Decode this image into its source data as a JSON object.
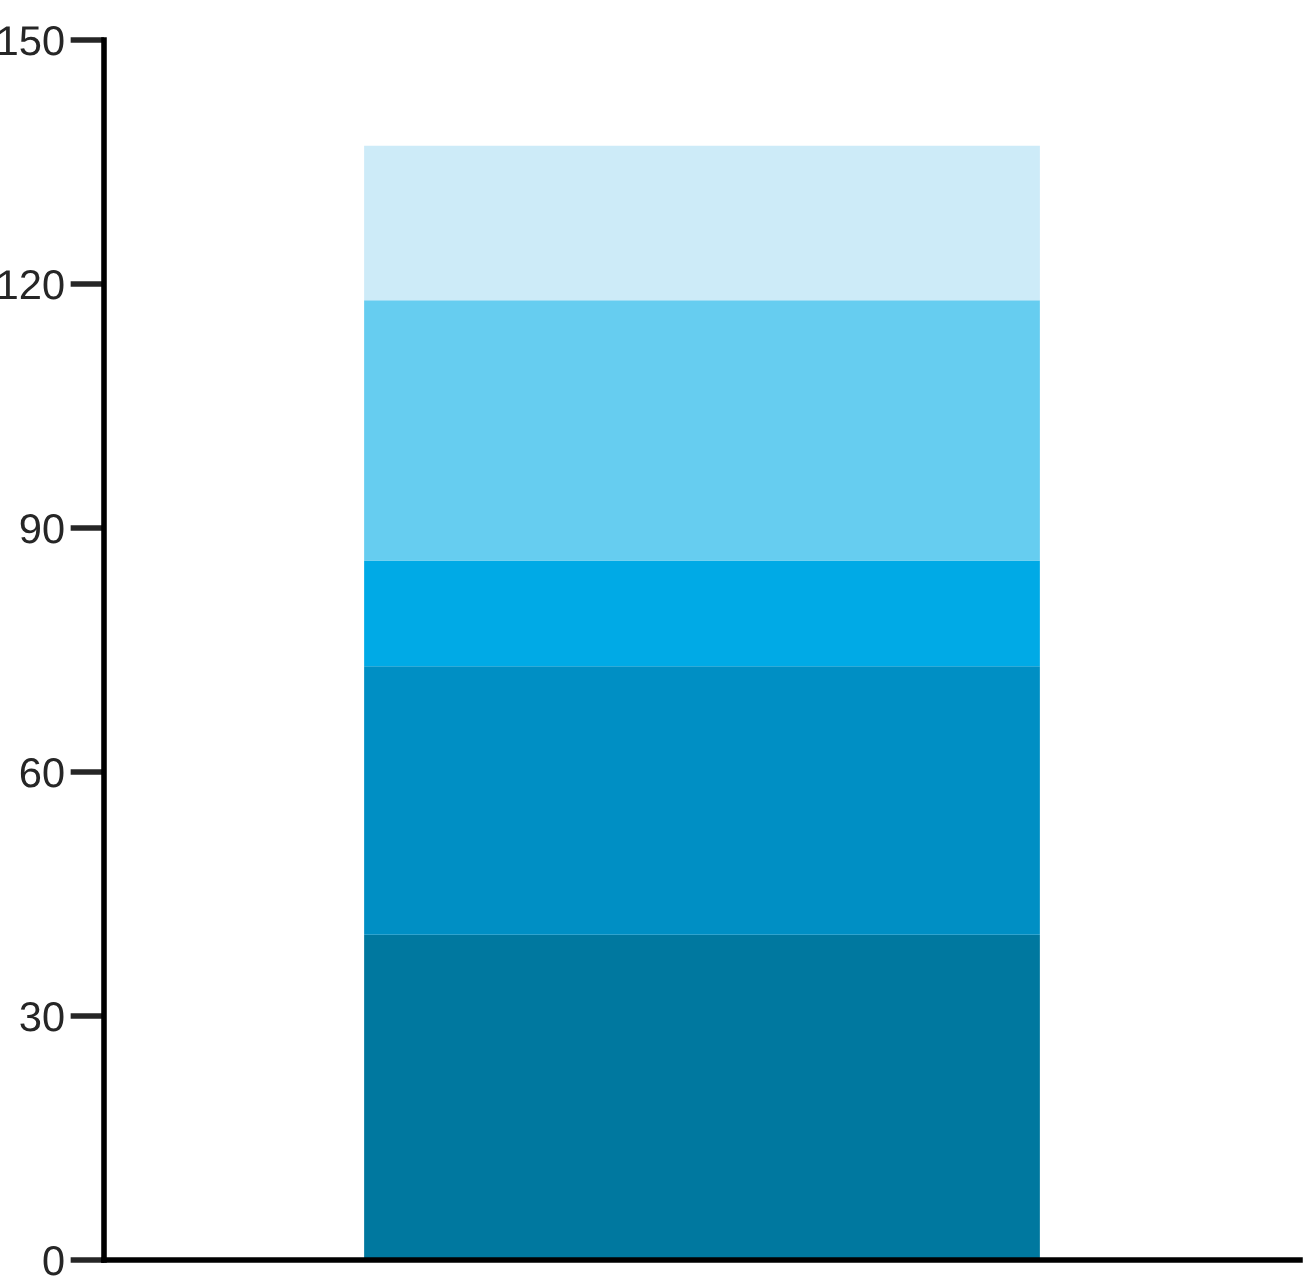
{
  "chart_data": {
    "type": "bar",
    "stacked": true,
    "categories": [
      null
    ],
    "series": [
      {
        "color": "#00789f",
        "values": [
          40
        ]
      },
      {
        "color": "#008fc4",
        "values": [
          33
        ]
      },
      {
        "color": "#00aae6",
        "values": [
          13
        ]
      },
      {
        "color": "#66cdf0",
        "values": [
          32
        ]
      },
      {
        "color": "#cdebf8",
        "values": [
          19
        ]
      }
    ],
    "ylim": [
      0,
      150
    ],
    "yticks": [
      0,
      30,
      60,
      90,
      120,
      150
    ],
    "grid": false
  }
}
